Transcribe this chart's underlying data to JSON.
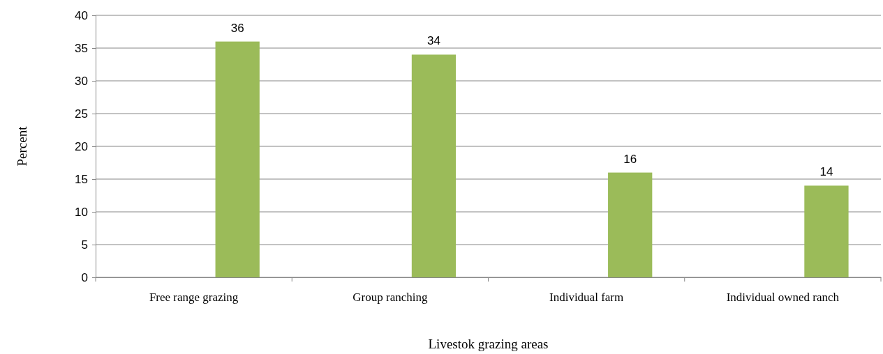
{
  "chart_data": {
    "type": "bar",
    "xlabel": "Livestok grazing areas",
    "ylabel": "Percent",
    "categories": [
      "Free range grazing",
      "Group ranching",
      "Individual  farm",
      "Individual owned ranch"
    ],
    "values": [
      36,
      34,
      16,
      14
    ],
    "color": "#9bbb59",
    "ylim": [
      0,
      40
    ],
    "yticks": [
      0,
      5,
      10,
      15,
      20,
      25,
      30,
      35,
      40
    ],
    "grid": "y",
    "data_labels": true
  }
}
